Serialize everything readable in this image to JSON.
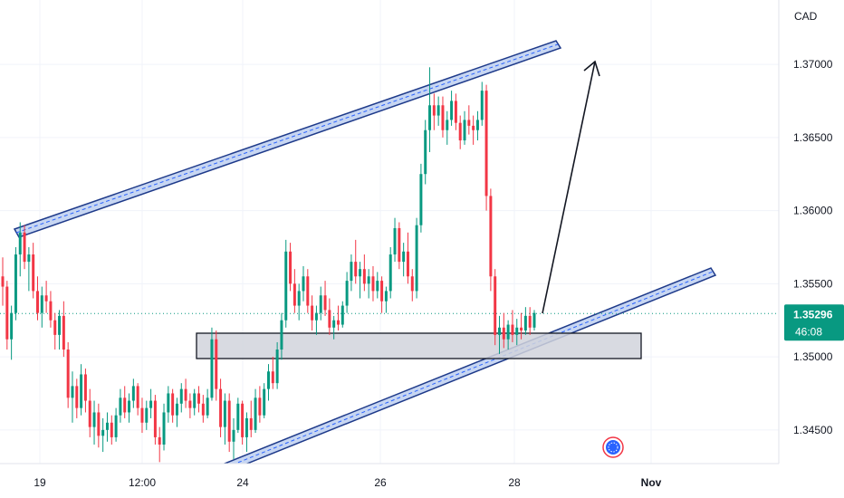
{
  "chart_data": {
    "type": "candlestick",
    "currency": "CAD",
    "y_axis": {
      "ticks": [
        1.345,
        1.35,
        1.355,
        1.36,
        1.365,
        1.37
      ],
      "tick_labels": [
        "1.34500",
        "1.35000",
        "1.35500",
        "1.36000",
        "1.36500",
        "1.37000"
      ],
      "range": [
        1.3427,
        1.3744
      ]
    },
    "x_axis": {
      "tick_labels": [
        "19",
        "12:00",
        "24",
        "26",
        "28",
        "Nov"
      ]
    },
    "last_price": {
      "value": 1.35296,
      "label": "1.35296",
      "countdown": "46:08"
    },
    "grid": true,
    "colors": {
      "up": "#089981",
      "down": "#f23645",
      "channel": "#1e3a8a",
      "channel_fill": "#c7d6f2",
      "zone_fill": "#d1d4dc",
      "price_line": "#089981",
      "grid": "#f0f3fa"
    },
    "candles": [
      [
        1.3555,
        1.3568,
        1.3535,
        1.3548
      ],
      [
        1.3548,
        1.3552,
        1.3505,
        1.3512
      ],
      [
        1.3512,
        1.3535,
        1.3498,
        1.353
      ],
      [
        1.353,
        1.3575,
        1.3525,
        1.357
      ],
      [
        1.357,
        1.3592,
        1.3555,
        1.3585
      ],
      [
        1.3585,
        1.359,
        1.356,
        1.3565
      ],
      [
        1.3565,
        1.3575,
        1.3545,
        1.357
      ],
      [
        1.357,
        1.3578,
        1.354,
        1.3545
      ],
      [
        1.3545,
        1.3555,
        1.3525,
        1.353
      ],
      [
        1.353,
        1.3548,
        1.352,
        1.3542
      ],
      [
        1.3542,
        1.3552,
        1.353,
        1.3538
      ],
      [
        1.3538,
        1.3545,
        1.352,
        1.3525
      ],
      [
        1.3525,
        1.353,
        1.3505,
        1.3515
      ],
      [
        1.3515,
        1.3532,
        1.3505,
        1.3528
      ],
      [
        1.3528,
        1.3538,
        1.35,
        1.3505
      ],
      [
        1.3505,
        1.351,
        1.3465,
        1.3472
      ],
      [
        1.3472,
        1.349,
        1.3455,
        1.348
      ],
      [
        1.348,
        1.3485,
        1.3458,
        1.3465
      ],
      [
        1.3465,
        1.3495,
        1.346,
        1.3488
      ],
      [
        1.3488,
        1.3492,
        1.3462,
        1.347
      ],
      [
        1.347,
        1.3478,
        1.3445,
        1.3452
      ],
      [
        1.3452,
        1.347,
        1.344,
        1.3462
      ],
      [
        1.3462,
        1.3468,
        1.3438,
        1.3446
      ],
      [
        1.3446,
        1.3458,
        1.3435,
        1.345
      ],
      [
        1.345,
        1.3462,
        1.3442,
        1.3455
      ],
      [
        1.3455,
        1.346,
        1.344,
        1.3445
      ],
      [
        1.3445,
        1.3465,
        1.3442,
        1.346
      ],
      [
        1.346,
        1.3478,
        1.3455,
        1.3472
      ],
      [
        1.3472,
        1.348,
        1.3458,
        1.3462
      ],
      [
        1.3462,
        1.3475,
        1.3455,
        1.347
      ],
      [
        1.347,
        1.3485,
        1.3465,
        1.348
      ],
      [
        1.348,
        1.3482,
        1.346,
        1.3465
      ],
      [
        1.3465,
        1.3472,
        1.3448,
        1.3455
      ],
      [
        1.3455,
        1.347,
        1.345,
        1.3465
      ],
      [
        1.3465,
        1.3478,
        1.3458,
        1.347
      ],
      [
        1.347,
        1.3474,
        1.344,
        1.3445
      ],
      [
        1.3445,
        1.3452,
        1.3428,
        1.344
      ],
      [
        1.344,
        1.3468,
        1.3436,
        1.3462
      ],
      [
        1.3462,
        1.348,
        1.3455,
        1.3475
      ],
      [
        1.3475,
        1.3478,
        1.3455,
        1.346
      ],
      [
        1.346,
        1.3472,
        1.3452,
        1.3468
      ],
      [
        1.3468,
        1.3482,
        1.3462,
        1.3478
      ],
      [
        1.3478,
        1.3485,
        1.3465,
        1.347
      ],
      [
        1.347,
        1.3475,
        1.3458,
        1.3465
      ],
      [
        1.3465,
        1.3478,
        1.346,
        1.3475
      ],
      [
        1.3475,
        1.348,
        1.3462,
        1.3468
      ],
      [
        1.3468,
        1.3474,
        1.3455,
        1.346
      ],
      [
        1.346,
        1.3478,
        1.3458,
        1.3472
      ],
      [
        1.3472,
        1.352,
        1.347,
        1.3512
      ],
      [
        1.3512,
        1.3518,
        1.347,
        1.3478
      ],
      [
        1.3478,
        1.3485,
        1.3445,
        1.3452
      ],
      [
        1.3452,
        1.3475,
        1.344,
        1.347
      ],
      [
        1.347,
        1.3475,
        1.3435,
        1.3442
      ],
      [
        1.3442,
        1.3458,
        1.343,
        1.345
      ],
      [
        1.345,
        1.3472,
        1.3448,
        1.3468
      ],
      [
        1.3468,
        1.347,
        1.344,
        1.3445
      ],
      [
        1.3445,
        1.3462,
        1.3435,
        1.3458
      ],
      [
        1.3458,
        1.347,
        1.3445,
        1.345
      ],
      [
        1.345,
        1.3478,
        1.3448,
        1.3472
      ],
      [
        1.3472,
        1.348,
        1.3455,
        1.346
      ],
      [
        1.346,
        1.3482,
        1.3458,
        1.3478
      ],
      [
        1.3478,
        1.3495,
        1.347,
        1.349
      ],
      [
        1.349,
        1.35,
        1.3478,
        1.3482
      ],
      [
        1.3482,
        1.351,
        1.3478,
        1.3505
      ],
      [
        1.3505,
        1.353,
        1.3498,
        1.3525
      ],
      [
        1.3525,
        1.358,
        1.352,
        1.3572
      ],
      [
        1.3572,
        1.3578,
        1.3545,
        1.355
      ],
      [
        1.355,
        1.356,
        1.353,
        1.3535
      ],
      [
        1.3535,
        1.355,
        1.3525,
        1.3545
      ],
      [
        1.3545,
        1.3562,
        1.3538,
        1.3555
      ],
      [
        1.3555,
        1.356,
        1.353,
        1.3535
      ],
      [
        1.3535,
        1.3542,
        1.3518,
        1.3525
      ],
      [
        1.3525,
        1.3535,
        1.3515,
        1.353
      ],
      [
        1.353,
        1.3548,
        1.3525,
        1.3542
      ],
      [
        1.3542,
        1.3552,
        1.3528,
        1.3532
      ],
      [
        1.3532,
        1.354,
        1.3515,
        1.352
      ],
      [
        1.352,
        1.3528,
        1.3512,
        1.3525
      ],
      [
        1.3525,
        1.3535,
        1.3518,
        1.3522
      ],
      [
        1.3522,
        1.3538,
        1.352,
        1.3535
      ],
      [
        1.3535,
        1.3558,
        1.353,
        1.3552
      ],
      [
        1.3552,
        1.357,
        1.3545,
        1.3565
      ],
      [
        1.3565,
        1.358,
        1.355,
        1.3555
      ],
      [
        1.3555,
        1.3565,
        1.354,
        1.356
      ],
      [
        1.356,
        1.357,
        1.3545,
        1.355
      ],
      [
        1.355,
        1.356,
        1.354,
        1.3555
      ],
      [
        1.3555,
        1.3562,
        1.3538,
        1.3545
      ],
      [
        1.3545,
        1.3558,
        1.354,
        1.3552
      ],
      [
        1.3552,
        1.3555,
        1.353,
        1.3538
      ],
      [
        1.3538,
        1.3548,
        1.353,
        1.3545
      ],
      [
        1.3545,
        1.3575,
        1.354,
        1.357
      ],
      [
        1.357,
        1.3595,
        1.3565,
        1.3588
      ],
      [
        1.3588,
        1.3592,
        1.356,
        1.3565
      ],
      [
        1.3565,
        1.3578,
        1.3555,
        1.3572
      ],
      [
        1.3572,
        1.3585,
        1.355,
        1.3555
      ],
      [
        1.3555,
        1.356,
        1.3538,
        1.3545
      ],
      [
        1.3545,
        1.3595,
        1.354,
        1.359
      ],
      [
        1.359,
        1.3632,
        1.3585,
        1.3625
      ],
      [
        1.3625,
        1.3662,
        1.3618,
        1.3655
      ],
      [
        1.3655,
        1.3698,
        1.364,
        1.3672
      ],
      [
        1.3672,
        1.368,
        1.3655,
        1.3665
      ],
      [
        1.3665,
        1.3678,
        1.3658,
        1.3672
      ],
      [
        1.3672,
        1.3678,
        1.365,
        1.3655
      ],
      [
        1.3655,
        1.3668,
        1.3645,
        1.3662
      ],
      [
        1.3662,
        1.3682,
        1.3658,
        1.3675
      ],
      [
        1.3675,
        1.368,
        1.3655,
        1.366
      ],
      [
        1.366,
        1.3665,
        1.3642,
        1.3648
      ],
      [
        1.3648,
        1.3668,
        1.3645,
        1.3662
      ],
      [
        1.3662,
        1.3672,
        1.3652,
        1.3658
      ],
      [
        1.3658,
        1.3665,
        1.3645,
        1.3655
      ],
      [
        1.3655,
        1.3668,
        1.3648,
        1.3662
      ],
      [
        1.3662,
        1.3688,
        1.3658,
        1.3682
      ],
      [
        1.3682,
        1.3686,
        1.36,
        1.361
      ],
      [
        1.361,
        1.3615,
        1.3545,
        1.3555
      ],
      [
        1.3555,
        1.356,
        1.3508,
        1.3515
      ],
      [
        1.3515,
        1.3528,
        1.3502,
        1.352
      ],
      [
        1.352,
        1.353,
        1.3506,
        1.3512
      ],
      [
        1.3512,
        1.3525,
        1.3505,
        1.3522
      ],
      [
        1.3522,
        1.3532,
        1.351,
        1.3515
      ],
      [
        1.3515,
        1.3526,
        1.3508,
        1.352
      ],
      [
        1.352,
        1.353,
        1.3512,
        1.3518
      ],
      [
        1.3518,
        1.3534,
        1.3515,
        1.3528
      ],
      [
        1.3528,
        1.3534,
        1.3515,
        1.352
      ],
      [
        1.352,
        1.3532,
        1.3518,
        1.353
      ]
    ]
  }
}
